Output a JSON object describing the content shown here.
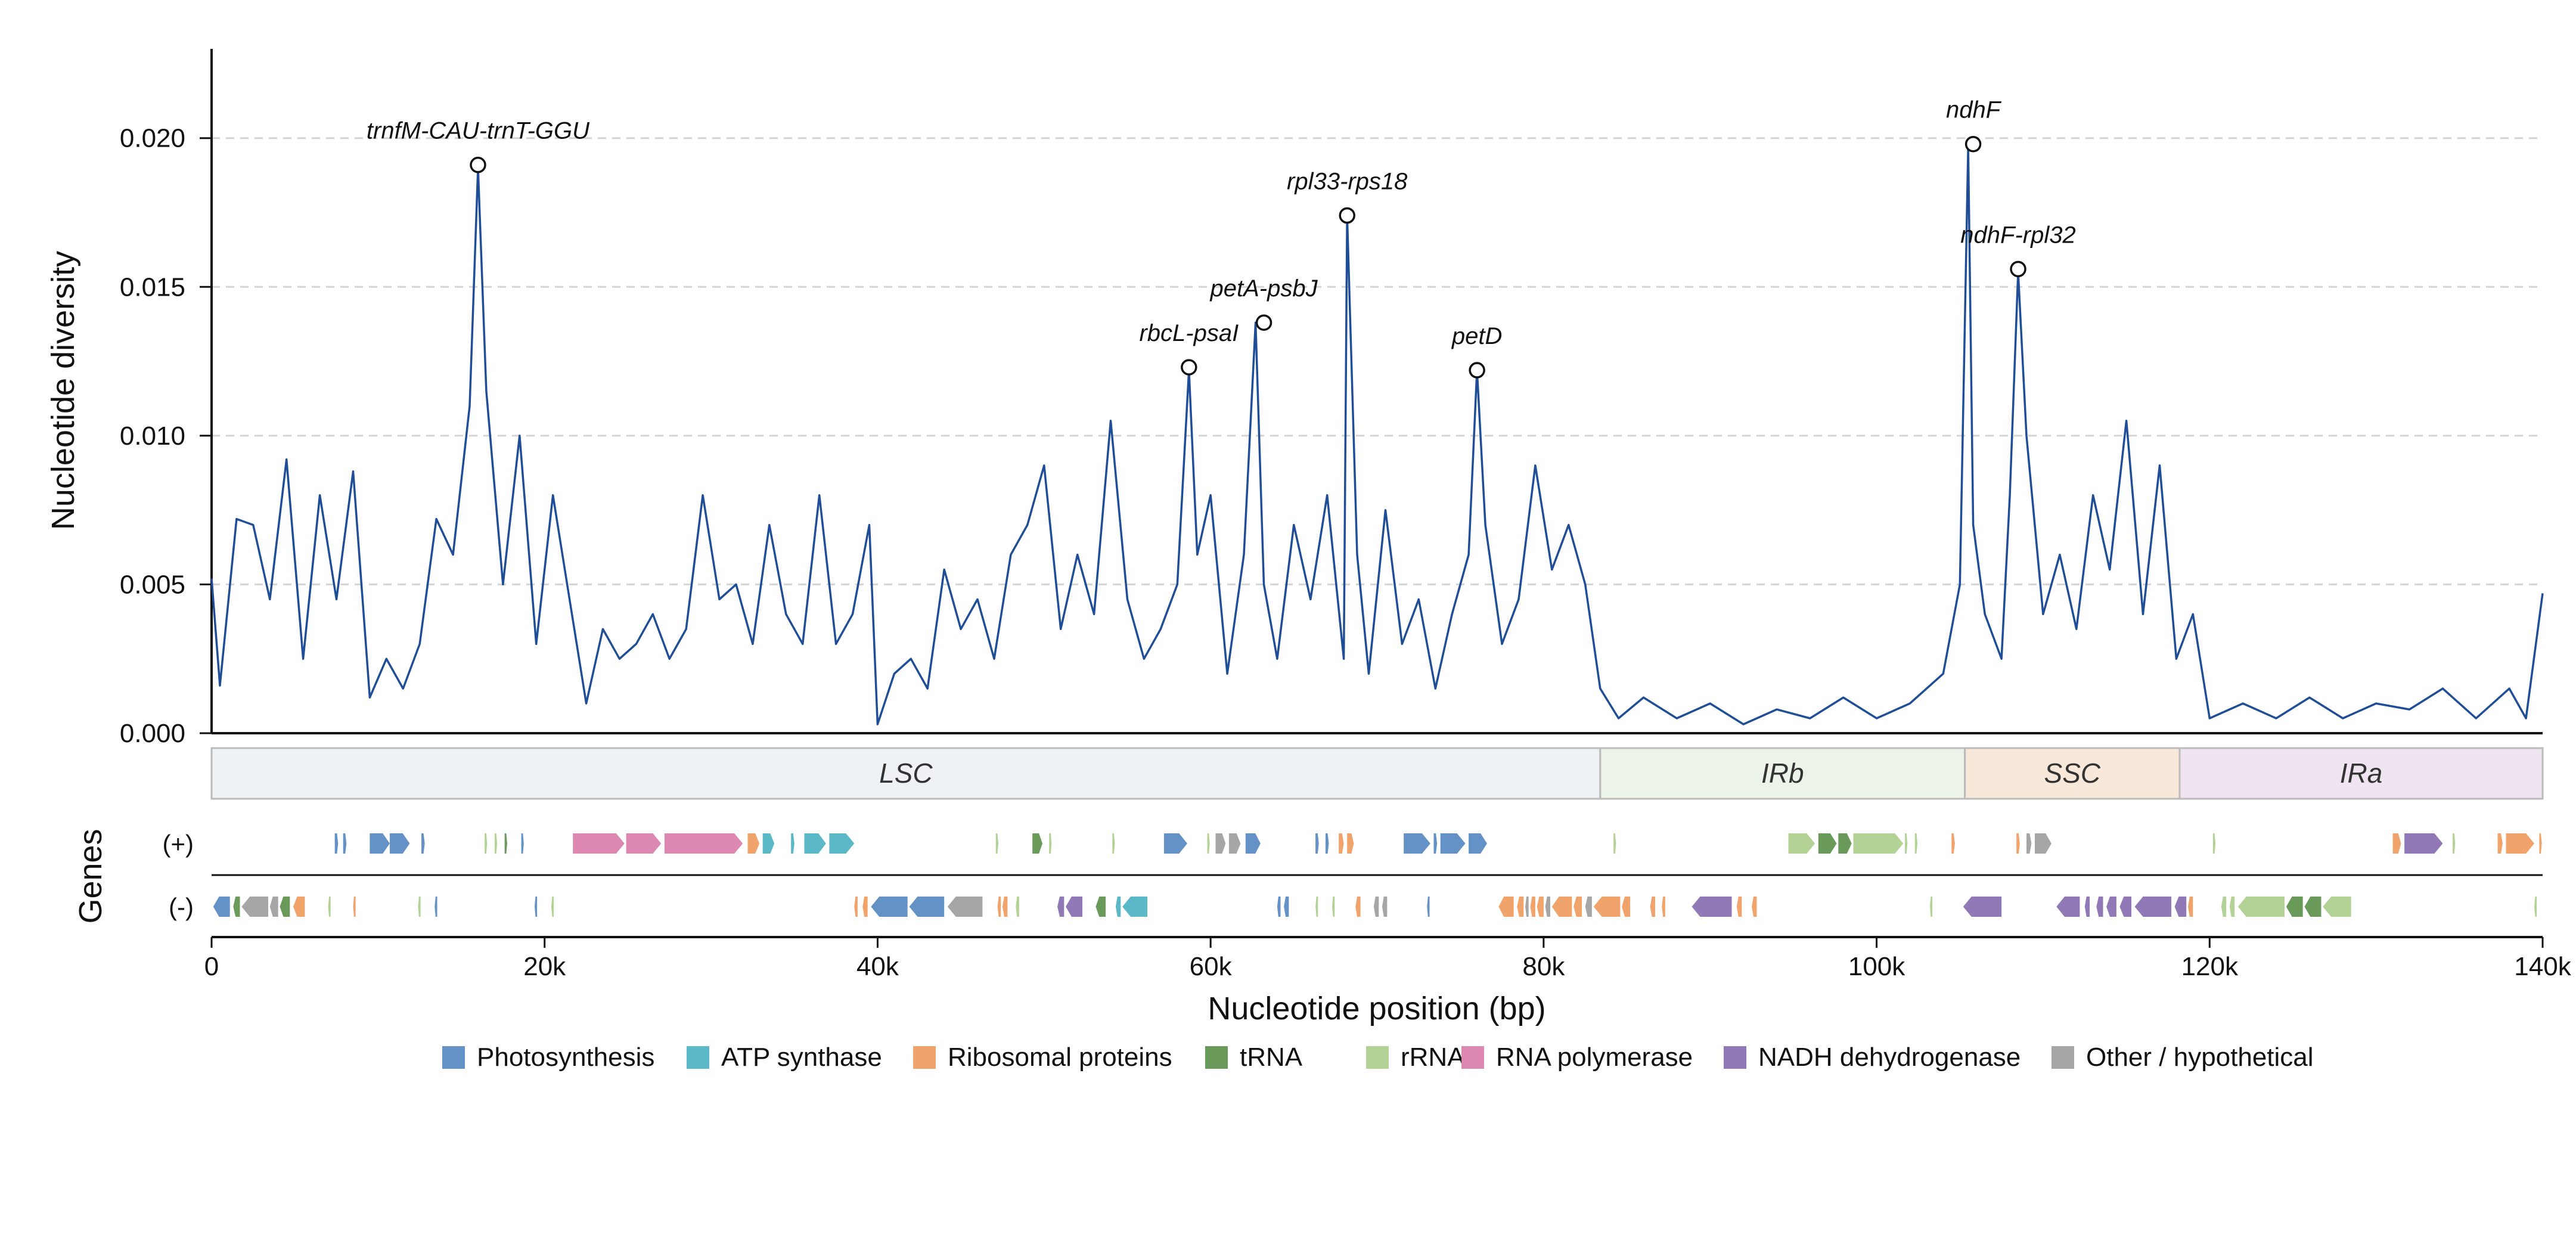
{
  "chart_data": {
    "type": "line",
    "ylabel": "Nucleotide diversity",
    "xlabel": "Nucleotide position (bp)",
    "gene_track_label": "Genes",
    "xlim": [
      0,
      140000
    ],
    "ylim": [
      0,
      0.023
    ],
    "x_ticks": [
      0,
      20000,
      40000,
      60000,
      80000,
      100000,
      120000,
      140000
    ],
    "x_tick_labels": [
      "0",
      "20k",
      "40k",
      "60k",
      "80k",
      "100k",
      "120k",
      "140k"
    ],
    "y_ticks": [
      0,
      0.005,
      0.01,
      0.015,
      0.02
    ],
    "y_tick_labels": [
      "0.000",
      "0.005",
      "0.010",
      "0.015",
      "0.020"
    ],
    "grid": "horizontal dashed",
    "line_color": "#1f4e96",
    "series": [
      {
        "x": [
          0,
          500,
          1500,
          2500,
          3500,
          4500,
          5500,
          6500,
          7500,
          8500,
          9500,
          10500,
          11500,
          12500,
          13500,
          14500,
          15500,
          16000,
          16500,
          17500,
          18500,
          19500,
          20500,
          21500,
          22500,
          23500,
          24500,
          25500,
          26500,
          27500,
          28500,
          29500,
          30500,
          31500,
          32500,
          33500,
          34500,
          35500,
          36500,
          37500,
          38500,
          39500,
          40000,
          41000,
          42000,
          43000,
          44000,
          45000,
          46000,
          47000,
          48000,
          49000,
          50000,
          51000,
          52000,
          53000,
          54000,
          55000,
          56000,
          57000,
          58000,
          58700,
          59200,
          60000,
          61000,
          62000,
          62700,
          63200,
          64000,
          65000,
          66000,
          67000,
          68000,
          68200,
          68800,
          69500,
          70500,
          71500,
          72500,
          73500,
          74500,
          75500,
          76000,
          76500,
          77500,
          78500,
          79500,
          80500,
          81500,
          82500,
          83400,
          84500,
          86000,
          88000,
          90000,
          92000,
          94000,
          96000,
          98000,
          100000,
          102000,
          104000,
          105000,
          105500,
          105800,
          106500,
          107500,
          108000,
          108500,
          109000,
          110000,
          111000,
          112000,
          113000,
          114000,
          115000,
          116000,
          117000,
          118000,
          119000,
          120000,
          122000,
          124000,
          126000,
          128000,
          130000,
          132000,
          134000,
          136000,
          138000,
          139000,
          140000
        ],
        "values": [
          0.0052,
          0.0016,
          0.0072,
          0.007,
          0.0045,
          0.0092,
          0.0025,
          0.008,
          0.0045,
          0.0088,
          0.0012,
          0.0025,
          0.0015,
          0.003,
          0.0072,
          0.006,
          0.011,
          0.019,
          0.0115,
          0.005,
          0.01,
          0.003,
          0.008,
          0.0045,
          0.001,
          0.0035,
          0.0025,
          0.003,
          0.004,
          0.0025,
          0.0035,
          0.008,
          0.0045,
          0.005,
          0.003,
          0.007,
          0.004,
          0.003,
          0.008,
          0.003,
          0.004,
          0.007,
          0.0003,
          0.002,
          0.0025,
          0.0015,
          0.0055,
          0.0035,
          0.0045,
          0.0025,
          0.006,
          0.007,
          0.009,
          0.0035,
          0.006,
          0.004,
          0.0105,
          0.0045,
          0.0025,
          0.0035,
          0.005,
          0.0122,
          0.006,
          0.008,
          0.002,
          0.006,
          0.0138,
          0.005,
          0.0025,
          0.007,
          0.0045,
          0.008,
          0.0025,
          0.0174,
          0.006,
          0.002,
          0.0075,
          0.003,
          0.0045,
          0.0015,
          0.004,
          0.006,
          0.0122,
          0.007,
          0.003,
          0.0045,
          0.009,
          0.0055,
          0.007,
          0.005,
          0.0015,
          0.0005,
          0.0012,
          0.0005,
          0.001,
          0.0003,
          0.0008,
          0.0005,
          0.0012,
          0.0005,
          0.001,
          0.002,
          0.005,
          0.0197,
          0.007,
          0.004,
          0.0025,
          0.008,
          0.0155,
          0.01,
          0.004,
          0.006,
          0.0035,
          0.008,
          0.0055,
          0.0105,
          0.004,
          0.009,
          0.0025,
          0.004,
          0.0005,
          0.001,
          0.0005,
          0.0012,
          0.0005,
          0.001,
          0.0008,
          0.0015,
          0.0005,
          0.0015,
          0.0005,
          0.0047
        ]
      }
    ],
    "peaks": [
      {
        "label": "trnfM-CAU-trnT-GGU",
        "x": 16000,
        "y": 0.0191
      },
      {
        "label": "rbcL-psaI",
        "x": 58700,
        "y": 0.0123
      },
      {
        "label": "petA-psbJ",
        "x": 63200,
        "y": 0.0138
      },
      {
        "label": "rpl33-rps18",
        "x": 68200,
        "y": 0.0174
      },
      {
        "label": "petD",
        "x": 76000,
        "y": 0.0122
      },
      {
        "label": "ndhF",
        "x": 105800,
        "y": 0.0198
      },
      {
        "label": "ndhF-rpl32",
        "x": 108500,
        "y": 0.0156
      }
    ],
    "regions": [
      {
        "label": "LSC",
        "start": 0,
        "end": 83400,
        "color": "#eef2f5"
      },
      {
        "label": "IRb",
        "start": 83400,
        "end": 105300,
        "color": "#ecf3e9"
      },
      {
        "label": "SSC",
        "start": 105300,
        "end": 118200,
        "color": "#f8e8d9"
      },
      {
        "label": "IRa",
        "start": 118200,
        "end": 140000,
        "color": "#efe5f0"
      }
    ],
    "strand_labels": [
      "(+)",
      "(-)"
    ],
    "categories": [
      {
        "key": "photo",
        "name": "Photosynthesis",
        "color": "#6492c6"
      },
      {
        "key": "atp",
        "name": "ATP synthase",
        "color": "#5bb8c6"
      },
      {
        "key": "ribo",
        "name": "Ribosomal proteins",
        "color": "#f0a36a"
      },
      {
        "key": "trna",
        "name": "tRNA",
        "color": "#6a9a5a"
      },
      {
        "key": "rrna",
        "name": "rRNA",
        "color": "#b3d396"
      },
      {
        "key": "rnap",
        "name": "RNA polymerase",
        "color": "#dd88b1"
      },
      {
        "key": "ndh",
        "name": "NADH dehydrogenase",
        "color": "#9079b6"
      },
      {
        "key": "other",
        "name": "Other / hypothetical",
        "color": "#a6a6a6"
      }
    ],
    "genes_plus": [
      {
        "start": 7400,
        "end": 7600,
        "cat": "photo"
      },
      {
        "start": 7900,
        "end": 8100,
        "cat": "photo"
      },
      {
        "start": 9500,
        "end": 10700,
        "cat": "photo"
      },
      {
        "start": 10700,
        "end": 11900,
        "cat": "photo"
      },
      {
        "start": 12600,
        "end": 12800,
        "cat": "photo"
      },
      {
        "start": 16400,
        "end": 16550,
        "cat": "rrna"
      },
      {
        "start": 17000,
        "end": 17150,
        "cat": "rrna"
      },
      {
        "start": 17600,
        "end": 17750,
        "cat": "trna"
      },
      {
        "start": 18600,
        "end": 18750,
        "cat": "photo"
      },
      {
        "start": 21700,
        "end": 24800,
        "cat": "rnap"
      },
      {
        "start": 24900,
        "end": 27000,
        "cat": "rnap"
      },
      {
        "start": 27200,
        "end": 31900,
        "cat": "rnap"
      },
      {
        "start": 32200,
        "end": 32900,
        "cat": "ribo"
      },
      {
        "start": 33100,
        "end": 33800,
        "cat": "atp"
      },
      {
        "start": 34800,
        "end": 35000,
        "cat": "atp"
      },
      {
        "start": 35600,
        "end": 36900,
        "cat": "atp"
      },
      {
        "start": 37100,
        "end": 38600,
        "cat": "atp"
      },
      {
        "start": 47100,
        "end": 47250,
        "cat": "rrna"
      },
      {
        "start": 49300,
        "end": 49900,
        "cat": "trna"
      },
      {
        "start": 50300,
        "end": 50450,
        "cat": "rrna"
      },
      {
        "start": 54100,
        "end": 54250,
        "cat": "rrna"
      },
      {
        "start": 57200,
        "end": 58600,
        "cat": "photo"
      },
      {
        "start": 59800,
        "end": 59950,
        "cat": "rrna"
      },
      {
        "start": 60300,
        "end": 60900,
        "cat": "other"
      },
      {
        "start": 61100,
        "end": 61800,
        "cat": "other"
      },
      {
        "start": 62100,
        "end": 63000,
        "cat": "photo"
      },
      {
        "start": 66300,
        "end": 66500,
        "cat": "photo"
      },
      {
        "start": 66900,
        "end": 67100,
        "cat": "photo"
      },
      {
        "start": 67700,
        "end": 68000,
        "cat": "ribo"
      },
      {
        "start": 68200,
        "end": 68600,
        "cat": "ribo"
      },
      {
        "start": 71600,
        "end": 73200,
        "cat": "photo"
      },
      {
        "start": 73400,
        "end": 73600,
        "cat": "photo"
      },
      {
        "start": 73800,
        "end": 75300,
        "cat": "photo"
      },
      {
        "start": 75500,
        "end": 76600,
        "cat": "photo"
      },
      {
        "start": 84200,
        "end": 84350,
        "cat": "rrna"
      },
      {
        "start": 94700,
        "end": 96300,
        "cat": "rrna"
      },
      {
        "start": 96500,
        "end": 97600,
        "cat": "trna"
      },
      {
        "start": 97700,
        "end": 98500,
        "cat": "trna"
      },
      {
        "start": 98600,
        "end": 101600,
        "cat": "rrna"
      },
      {
        "start": 101700,
        "end": 101850,
        "cat": "rrna"
      },
      {
        "start": 102300,
        "end": 102450,
        "cat": "rrna"
      },
      {
        "start": 104500,
        "end": 104700,
        "cat": "ribo"
      },
      {
        "start": 108400,
        "end": 108600,
        "cat": "ribo"
      },
      {
        "start": 109000,
        "end": 109300,
        "cat": "other"
      },
      {
        "start": 109500,
        "end": 110500,
        "cat": "other"
      },
      {
        "start": 120200,
        "end": 120350,
        "cat": "rrna"
      },
      {
        "start": 131000,
        "end": 131500,
        "cat": "ribo"
      },
      {
        "start": 131700,
        "end": 134000,
        "cat": "ndh"
      },
      {
        "start": 134600,
        "end": 134750,
        "cat": "rrna"
      },
      {
        "start": 137300,
        "end": 137600,
        "cat": "ribo"
      },
      {
        "start": 137800,
        "end": 139500,
        "cat": "ribo"
      },
      {
        "start": 139800,
        "end": 139950,
        "cat": "ribo"
      }
    ],
    "genes_minus": [
      {
        "start": 100,
        "end": 1100,
        "cat": "photo"
      },
      {
        "start": 1300,
        "end": 1700,
        "cat": "trna"
      },
      {
        "start": 1800,
        "end": 3400,
        "cat": "other"
      },
      {
        "start": 3500,
        "end": 4000,
        "cat": "other"
      },
      {
        "start": 4100,
        "end": 4700,
        "cat": "trna"
      },
      {
        "start": 4900,
        "end": 5600,
        "cat": "ribo"
      },
      {
        "start": 7000,
        "end": 7150,
        "cat": "rrna"
      },
      {
        "start": 8500,
        "end": 8650,
        "cat": "ribo"
      },
      {
        "start": 12400,
        "end": 12550,
        "cat": "rrna"
      },
      {
        "start": 13400,
        "end": 13550,
        "cat": "photo"
      },
      {
        "start": 19400,
        "end": 19550,
        "cat": "photo"
      },
      {
        "start": 20400,
        "end": 20550,
        "cat": "rrna"
      },
      {
        "start": 38600,
        "end": 38800,
        "cat": "ribo"
      },
      {
        "start": 39100,
        "end": 39400,
        "cat": "ribo"
      },
      {
        "start": 39600,
        "end": 41800,
        "cat": "photo"
      },
      {
        "start": 41900,
        "end": 44000,
        "cat": "photo"
      },
      {
        "start": 44200,
        "end": 46300,
        "cat": "other"
      },
      {
        "start": 47200,
        "end": 47400,
        "cat": "ribo"
      },
      {
        "start": 47500,
        "end": 47800,
        "cat": "ribo"
      },
      {
        "start": 48300,
        "end": 48500,
        "cat": "rrna"
      },
      {
        "start": 50800,
        "end": 51200,
        "cat": "ndh"
      },
      {
        "start": 51300,
        "end": 52300,
        "cat": "ndh"
      },
      {
        "start": 53100,
        "end": 53700,
        "cat": "trna"
      },
      {
        "start": 54300,
        "end": 54600,
        "cat": "atp"
      },
      {
        "start": 54700,
        "end": 56200,
        "cat": "atp"
      },
      {
        "start": 64000,
        "end": 64200,
        "cat": "photo"
      },
      {
        "start": 64400,
        "end": 64700,
        "cat": "photo"
      },
      {
        "start": 66300,
        "end": 66450,
        "cat": "rrna"
      },
      {
        "start": 67300,
        "end": 67450,
        "cat": "rrna"
      },
      {
        "start": 68700,
        "end": 69000,
        "cat": "ribo"
      },
      {
        "start": 69800,
        "end": 70100,
        "cat": "other"
      },
      {
        "start": 70300,
        "end": 70600,
        "cat": "other"
      },
      {
        "start": 73000,
        "end": 73150,
        "cat": "photo"
      },
      {
        "start": 77300,
        "end": 78200,
        "cat": "ribo"
      },
      {
        "start": 78400,
        "end": 78800,
        "cat": "ribo"
      },
      {
        "start": 78900,
        "end": 79100,
        "cat": "other"
      },
      {
        "start": 79200,
        "end": 79500,
        "cat": "ribo"
      },
      {
        "start": 79600,
        "end": 80000,
        "cat": "ribo"
      },
      {
        "start": 80100,
        "end": 80400,
        "cat": "other"
      },
      {
        "start": 80500,
        "end": 81700,
        "cat": "ribo"
      },
      {
        "start": 81800,
        "end": 82300,
        "cat": "ribo"
      },
      {
        "start": 82500,
        "end": 82900,
        "cat": "other"
      },
      {
        "start": 83000,
        "end": 84600,
        "cat": "ribo"
      },
      {
        "start": 84700,
        "end": 85200,
        "cat": "ribo"
      },
      {
        "start": 86400,
        "end": 86700,
        "cat": "ribo"
      },
      {
        "start": 87100,
        "end": 87300,
        "cat": "ribo"
      },
      {
        "start": 88900,
        "end": 91300,
        "cat": "ndh"
      },
      {
        "start": 91600,
        "end": 91900,
        "cat": "ribo"
      },
      {
        "start": 92500,
        "end": 92800,
        "cat": "ribo"
      },
      {
        "start": 103200,
        "end": 103350,
        "cat": "rrna"
      },
      {
        "start": 105200,
        "end": 107500,
        "cat": "ndh"
      },
      {
        "start": 110800,
        "end": 112200,
        "cat": "ndh"
      },
      {
        "start": 112500,
        "end": 112800,
        "cat": "ndh"
      },
      {
        "start": 113200,
        "end": 113600,
        "cat": "ndh"
      },
      {
        "start": 113800,
        "end": 114400,
        "cat": "ndh"
      },
      {
        "start": 114600,
        "end": 115300,
        "cat": "ndh"
      },
      {
        "start": 115500,
        "end": 117700,
        "cat": "ndh"
      },
      {
        "start": 117900,
        "end": 118600,
        "cat": "ndh"
      },
      {
        "start": 118700,
        "end": 119000,
        "cat": "ribo"
      },
      {
        "start": 120700,
        "end": 121000,
        "cat": "rrna"
      },
      {
        "start": 121200,
        "end": 121500,
        "cat": "rrna"
      },
      {
        "start": 121700,
        "end": 124500,
        "cat": "rrna"
      },
      {
        "start": 124600,
        "end": 125600,
        "cat": "trna"
      },
      {
        "start": 125700,
        "end": 126700,
        "cat": "trna"
      },
      {
        "start": 126800,
        "end": 128500,
        "cat": "rrna"
      },
      {
        "start": 139500,
        "end": 139650,
        "cat": "rrna"
      }
    ]
  }
}
